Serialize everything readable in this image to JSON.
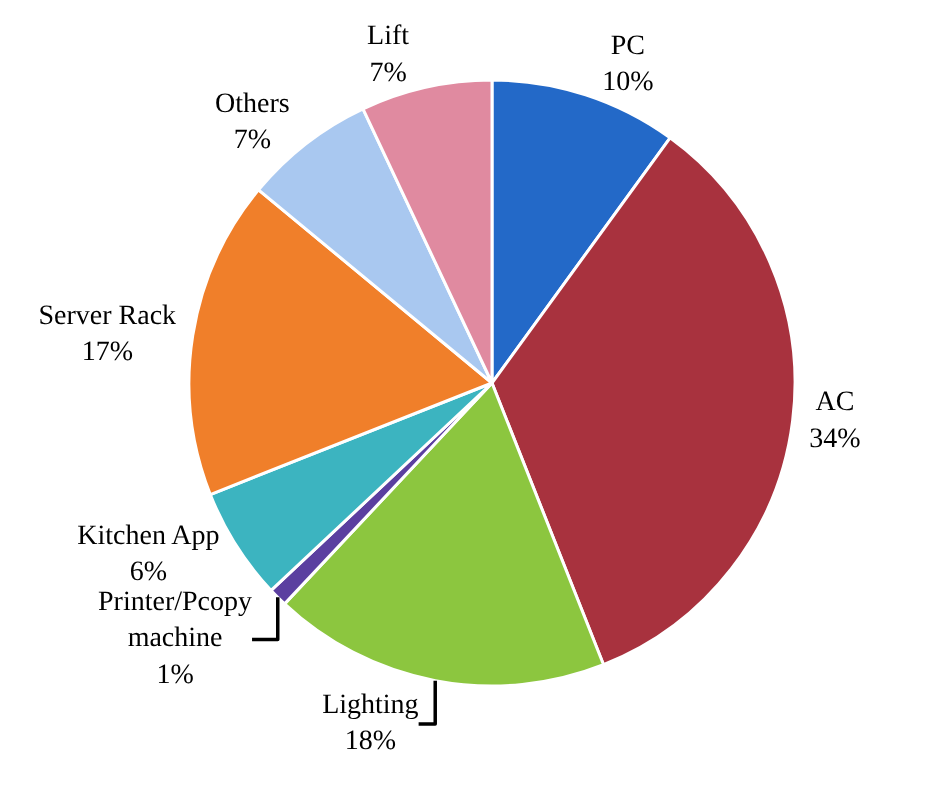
{
  "chart_data": {
    "type": "pie",
    "categories": [
      "PC",
      "AC",
      "Lighting",
      "Printer/Pcopy machine",
      "Kitchen App",
      "Server Rack",
      "Others",
      "Lift"
    ],
    "values": [
      10,
      34,
      18,
      1,
      6,
      17,
      7,
      7
    ],
    "value_labels": [
      "10%",
      "34%",
      "18%",
      "1%",
      "6%",
      "17%",
      "7%",
      "7%"
    ],
    "colors": [
      "#2369c8",
      "#a8323e",
      "#8cc63f",
      "#5b3fa0",
      "#3cb4c0",
      "#f07f2a",
      "#a9c8f0",
      "#e08aa0"
    ],
    "legend": false
  }
}
